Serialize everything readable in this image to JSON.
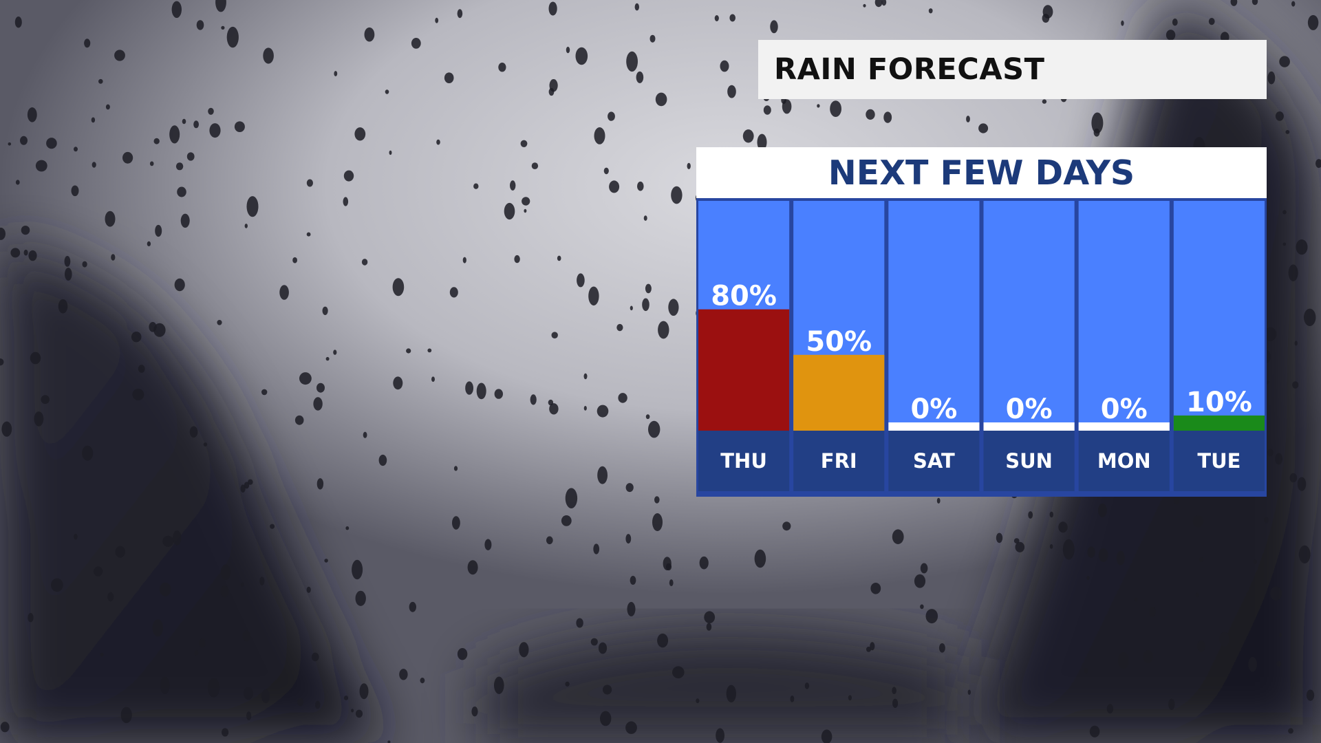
{
  "header": {
    "title": "RAIN FORECAST"
  },
  "chart_data": {
    "type": "bar",
    "title": "NEXT FEW DAYS",
    "categories": [
      "THU",
      "FRI",
      "SAT",
      "SUN",
      "MON",
      "TUE"
    ],
    "values": [
      80,
      50,
      0,
      0,
      0,
      10
    ],
    "value_labels": [
      "80%",
      "50%",
      "0%",
      "0%",
      "0%",
      "10%"
    ],
    "bar_colors": [
      "#9b1010",
      "#e0940f",
      "#ffffff",
      "#ffffff",
      "#ffffff",
      "#1a8a1a"
    ],
    "ylim": [
      0,
      100
    ],
    "unit": "%",
    "grid": false,
    "legend": "none"
  },
  "colors": {
    "column_background": "#4a80ff",
    "day_label_band": "#223f85",
    "column_border": "#2846a0",
    "title_text": "#111111",
    "subtitle_text": "#1c3a7a",
    "value_label_text": "#ffffff"
  },
  "background_description_icon": "raindrops-on-window-icon"
}
